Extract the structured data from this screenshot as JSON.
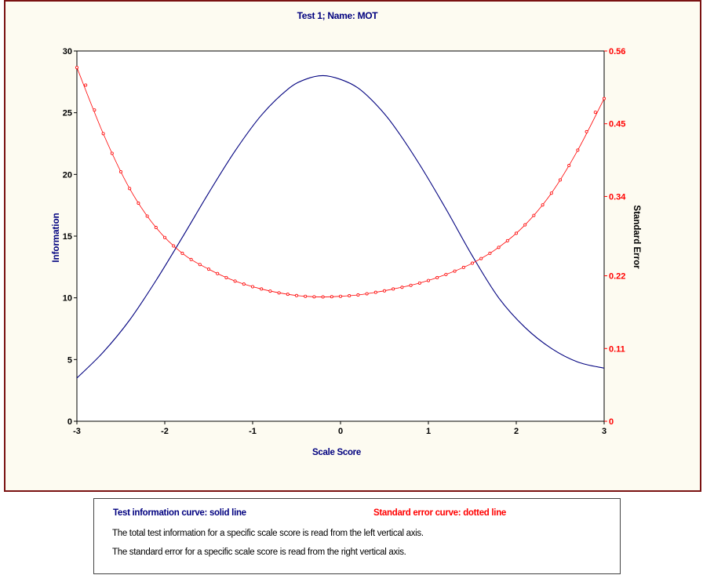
{
  "chart_data": {
    "type": "line",
    "title": "Test   1; Name: MOT",
    "xlabel": "Scale Score",
    "ylabel_left": "Information",
    "ylabel_right": "Standard Error",
    "xlim": [
      -3,
      3
    ],
    "ylim_left": [
      0,
      30
    ],
    "ylim_right": [
      0,
      0.56
    ],
    "x_ticks": [
      "-3",
      "-2",
      "-1",
      "0",
      "1",
      "2",
      "3"
    ],
    "y_left_ticks": [
      "0",
      "5",
      "10",
      "15",
      "20",
      "25",
      "30"
    ],
    "y_right_ticks": [
      "0",
      "0.11",
      "0.22",
      "0.34",
      "0.45",
      "0.56"
    ],
    "x_tick_values": [
      -3,
      -2,
      -1,
      0,
      1,
      2,
      3
    ],
    "y_left_tick_values": [
      0,
      5,
      10,
      15,
      20,
      25,
      30
    ],
    "y_right_tick_values": [
      0,
      0.11,
      0.22,
      0.34,
      0.45,
      0.56
    ],
    "grid": false,
    "legend": "below",
    "series": [
      {
        "axis": "left",
        "style": "solid",
        "color": "#00007f",
        "x": [
          -3.0,
          -2.7,
          -2.4,
          -2.1,
          -1.8,
          -1.5,
          -1.2,
          -0.9,
          -0.6,
          -0.4,
          -0.2,
          0.0,
          0.2,
          0.4,
          0.6,
          0.9,
          1.2,
          1.5,
          1.8,
          2.1,
          2.4,
          2.7,
          3.0
        ],
        "values": [
          3.5,
          5.6,
          8.2,
          11.4,
          14.9,
          18.5,
          21.9,
          24.8,
          26.9,
          27.7,
          28.0,
          27.7,
          27.0,
          25.7,
          24.0,
          20.8,
          17.2,
          13.4,
          10.0,
          7.6,
          5.9,
          4.8,
          4.3
        ]
      },
      {
        "axis": "right",
        "style": "dotted",
        "color": "#ff0000",
        "x": [
          -3.0,
          -2.7,
          -2.4,
          -2.1,
          -1.8,
          -1.5,
          -1.2,
          -0.9,
          -0.6,
          -0.4,
          -0.2,
          0.0,
          0.2,
          0.4,
          0.6,
          0.9,
          1.2,
          1.5,
          1.8,
          2.1,
          2.4,
          2.7,
          3.0
        ],
        "values": [
          0.535,
          0.435,
          0.352,
          0.293,
          0.254,
          0.23,
          0.212,
          0.2,
          0.192,
          0.189,
          0.188,
          0.189,
          0.191,
          0.195,
          0.2,
          0.209,
          0.222,
          0.239,
          0.263,
          0.297,
          0.345,
          0.41,
          0.488
        ]
      }
    ]
  },
  "colors": {
    "info_axis": "#00007f",
    "se_axis": "#ff0000",
    "frame_border": "#7a1212",
    "frame_background": "#fdfbf1"
  },
  "legend": {
    "info_title": "Test information curve: solid line",
    "se_title": "Standard error curve: dotted line",
    "line1": "The total test information for a specific scale score is read from the left vertical axis.",
    "line2": "The standard error for a specific scale score is read from the right vertical axis."
  }
}
